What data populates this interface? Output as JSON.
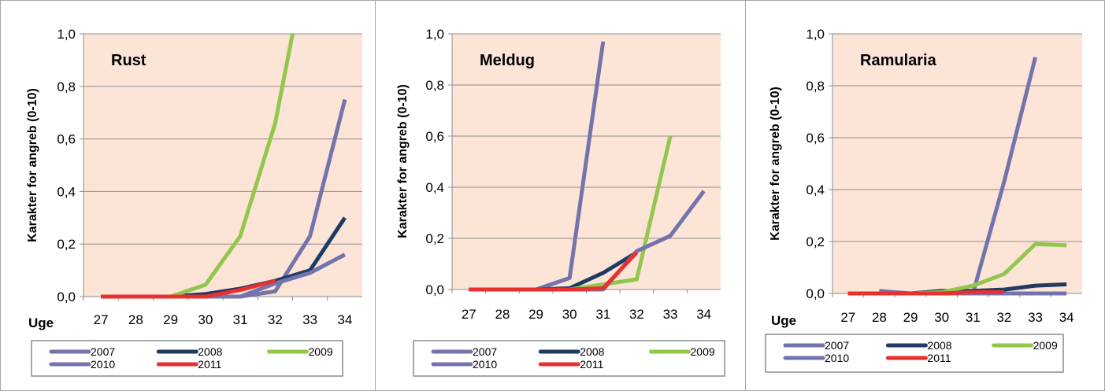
{
  "chart_data": [
    {
      "type": "line",
      "title": "Rust",
      "xlabel": "Uge",
      "ylabel": "Karakter for angreb (0-10)",
      "ylim": [
        0,
        1.0
      ],
      "yticks": [
        "0,0",
        "0,2",
        "0,4",
        "0,6",
        "0,8",
        "1,0"
      ],
      "categories": [
        "27",
        "28",
        "29",
        "30",
        "31",
        "32",
        "33",
        "34"
      ],
      "grid": true,
      "legend": "bottom",
      "series": [
        {
          "name": "2007",
          "color": "#7474ad",
          "x": [
            27,
            28,
            29,
            30,
            31,
            32,
            33,
            34
          ],
          "values": [
            0,
            0,
            0,
            0,
            0,
            0.02,
            0.23,
            0.75
          ]
        },
        {
          "name": "2008",
          "color": "#1f3b63",
          "x": [
            27,
            28,
            29,
            30,
            31,
            32,
            33,
            34
          ],
          "values": [
            0,
            0,
            0,
            0.01,
            0.03,
            0.06,
            0.1,
            0.3
          ]
        },
        {
          "name": "2009",
          "color": "#92c74e",
          "x": [
            27,
            28,
            29,
            30,
            31,
            32,
            32.5
          ],
          "values": [
            0,
            0,
            0,
            0.045,
            0.23,
            0.66,
            1.0
          ]
        },
        {
          "name": "2010",
          "color": "#7474ad",
          "x": [
            27,
            28,
            29,
            30,
            31,
            32,
            33,
            34
          ],
          "values": [
            0,
            0,
            0,
            0,
            0,
            0.05,
            0.09,
            0.16
          ]
        },
        {
          "name": "2011",
          "color": "#e8312f",
          "x": [
            27,
            28,
            29,
            30,
            31,
            32
          ],
          "values": [
            0,
            0,
            0,
            0,
            0.025,
            0.06
          ]
        }
      ]
    },
    {
      "type": "line",
      "title": "Meldug",
      "xlabel": "",
      "ylabel": "Karakter for angreb (0-10)",
      "ylim": [
        0,
        1.0
      ],
      "yticks": [
        "0,0",
        "0,2",
        "0,4",
        "0,6",
        "0,8",
        "1,0"
      ],
      "categories": [
        "27",
        "28",
        "29",
        "30",
        "31",
        "32",
        "33",
        "34"
      ],
      "grid": true,
      "legend": "bottom",
      "series": [
        {
          "name": "2007",
          "color": "#7474ad",
          "x": [
            27,
            28,
            29,
            30,
            31
          ],
          "values": [
            0,
            0,
            0,
            0.045,
            0.97
          ]
        },
        {
          "name": "2008",
          "color": "#1f3b63",
          "x": [
            27,
            28,
            29,
            30,
            31,
            32
          ],
          "values": [
            0,
            0,
            0,
            0.005,
            0.065,
            0.145
          ]
        },
        {
          "name": "2009",
          "color": "#92c74e",
          "x": [
            27,
            28,
            29,
            30,
            31,
            32,
            33
          ],
          "values": [
            0,
            0,
            0,
            0,
            0.02,
            0.04,
            0.6
          ]
        },
        {
          "name": "2010",
          "color": "#7474ad",
          "x": [
            27,
            28,
            29,
            30,
            31,
            32,
            33,
            34
          ],
          "values": [
            0,
            0,
            0,
            0,
            0,
            0.15,
            0.21,
            0.385
          ]
        },
        {
          "name": "2011",
          "color": "#e8312f",
          "x": [
            27,
            28,
            29,
            30,
            31,
            32
          ],
          "values": [
            0,
            0,
            0,
            0,
            0.005,
            0.145
          ]
        }
      ]
    },
    {
      "type": "line",
      "title": "Ramularia",
      "xlabel": "Uge",
      "ylabel": "Karakter for angreb (0-10)",
      "ylim": [
        0,
        1.0
      ],
      "yticks": [
        "0,0",
        "0,2",
        "0,4",
        "0,6",
        "0,8",
        "1,0"
      ],
      "categories": [
        "27",
        "28",
        "29",
        "30",
        "31",
        "32",
        "33",
        "34"
      ],
      "grid": true,
      "legend": "bottom",
      "series": [
        {
          "name": "2007",
          "color": "#7474ad",
          "x": [
            28,
            29,
            30,
            31,
            32,
            33
          ],
          "values": [
            0.01,
            0,
            0,
            0,
            0.43,
            0.91
          ]
        },
        {
          "name": "2008",
          "color": "#1f3b63",
          "x": [
            27,
            28,
            29,
            30,
            31,
            32,
            33,
            34
          ],
          "values": [
            0,
            0,
            0,
            0.01,
            0.01,
            0.015,
            0.03,
            0.035
          ]
        },
        {
          "name": "2009",
          "color": "#92c74e",
          "x": [
            27,
            28,
            29,
            30,
            31,
            32,
            33,
            34
          ],
          "values": [
            0,
            0,
            0,
            0.005,
            0.03,
            0.075,
            0.19,
            0.185
          ]
        },
        {
          "name": "2010",
          "color": "#7474ad",
          "x": [
            27,
            28,
            29,
            30,
            31,
            32,
            33,
            34
          ],
          "values": [
            0,
            0,
            0,
            0,
            0,
            0,
            0,
            0
          ]
        },
        {
          "name": "2011",
          "color": "#e8312f",
          "x": [
            27,
            28,
            29,
            30,
            31,
            32
          ],
          "values": [
            0,
            0,
            0,
            0,
            0.005,
            0.005
          ]
        }
      ]
    }
  ]
}
